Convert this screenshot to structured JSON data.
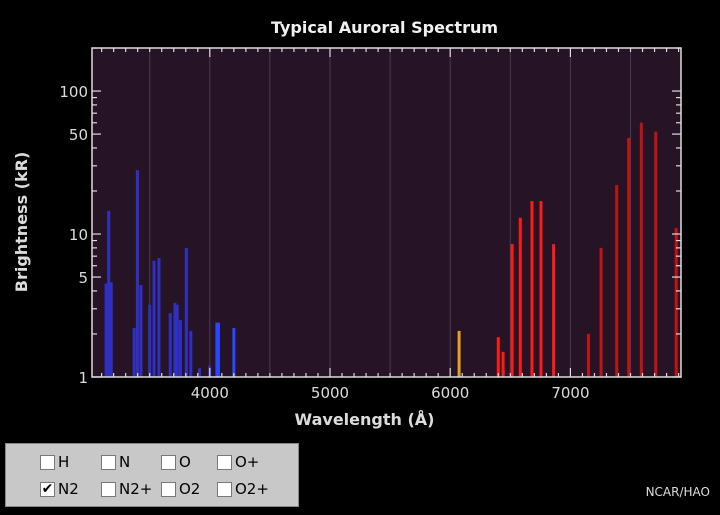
{
  "chart_data": {
    "type": "bar",
    "title": "Typical Auroral Spectrum",
    "xlabel": "Wavelength (Å)",
    "ylabel": "Brightness (kR)",
    "xlim": [
      3020,
      7920
    ],
    "ylim": [
      1,
      200
    ],
    "yscale": "log",
    "x_ticks": [
      4000,
      5000,
      6000,
      7000
    ],
    "y_ticks": [
      1,
      5,
      10,
      50,
      100
    ],
    "grid": "vertical",
    "plot_bg": "#261426",
    "series": [
      {
        "color": "#3030c0",
        "x": [
          3137,
          3159,
          3180,
          3371,
          3398,
          3427,
          3500,
          3536,
          3577,
          3671,
          3710,
          3729,
          3755,
          3805,
          3842,
          3914,
          3998
        ],
        "values": [
          4.5,
          14.5,
          4.6,
          2.2,
          28,
          4.4,
          3.2,
          6.5,
          6.8,
          2.8,
          3.3,
          3.2,
          2.5,
          8,
          2.1,
          1.15,
          1.2
        ]
      },
      {
        "color": "#2a46ff",
        "x": [
          4059,
          4072,
          4200
        ],
        "values": [
          2.4,
          2.4,
          2.2
        ]
      },
      {
        "color": "#e8a020",
        "x": [
          6074
        ],
        "values": [
          2.1
        ]
      },
      {
        "color": "#ff1a1a",
        "x": [
          6400,
          6440,
          6515,
          6583,
          6680,
          6755,
          6860
        ],
        "values": [
          1.9,
          1.5,
          8.5,
          13,
          17,
          17,
          8.5
        ]
      },
      {
        "color": "#c01414",
        "x": [
          7150,
          7255,
          7385,
          7485,
          7590,
          7710,
          7880
        ],
        "values": [
          2,
          8,
          22,
          47,
          60,
          52,
          11
        ]
      }
    ]
  },
  "legend": {
    "items": [
      {
        "label": "H",
        "checked": false
      },
      {
        "label": "N",
        "checked": false
      },
      {
        "label": "O",
        "checked": false
      },
      {
        "label": "O+",
        "checked": false
      },
      {
        "label": "N2",
        "checked": true
      },
      {
        "label": "N2+",
        "checked": false
      },
      {
        "label": "O2",
        "checked": false
      },
      {
        "label": "O2+",
        "checked": false
      }
    ],
    "check_glyph": "✔"
  },
  "credit": "NCAR/HAO"
}
